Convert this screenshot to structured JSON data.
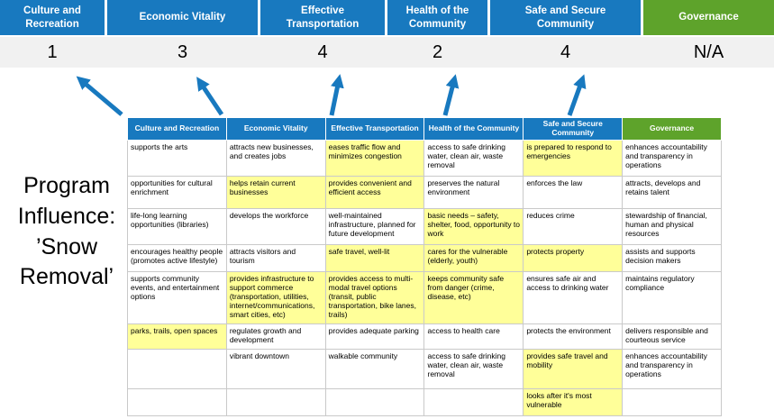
{
  "colors": {
    "blue": "#1879BF",
    "green": "#5EA32B",
    "highlight": "#FFFF99",
    "score_band": "#F1F1F1",
    "arrow": "#1879BF"
  },
  "pillars": [
    {
      "label": "Culture and Recreation",
      "score": "1",
      "color": "blue"
    },
    {
      "label": "Economic Vitality",
      "score": "3",
      "color": "blue"
    },
    {
      "label": "Effective Transportation",
      "score": "4",
      "color": "blue"
    },
    {
      "label": "Health of the Community",
      "score": "2",
      "color": "blue"
    },
    {
      "label": "Safe and Secure Community",
      "score": "4",
      "color": "blue"
    },
    {
      "label": "Governance",
      "score": "N/A",
      "color": "green"
    }
  ],
  "program_title": "Program Influence: ’Snow Removal’",
  "table": {
    "headers": [
      {
        "label": "Culture and Recreation",
        "color": "blue"
      },
      {
        "label": "Economic Vitality",
        "color": "blue"
      },
      {
        "label": "Effective Transportation",
        "color": "blue"
      },
      {
        "label": "Health of the Community",
        "color": "blue"
      },
      {
        "label": "Safe and Secure Community",
        "color": "blue"
      },
      {
        "label": "Governance",
        "color": "green"
      }
    ],
    "rows": [
      [
        {
          "text": "supports the arts",
          "highlight": false
        },
        {
          "text": "attracts new businesses, and creates jobs",
          "highlight": false
        },
        {
          "text": "eases traffic flow and minimizes congestion",
          "highlight": true
        },
        {
          "text": "access to safe drinking water, clean air, waste removal",
          "highlight": false
        },
        {
          "text": "is prepared to respond to emergencies",
          "highlight": true
        },
        {
          "text": "enhances accountability and transparency in operations",
          "highlight": false
        }
      ],
      [
        {
          "text": "opportunities for cultural enrichment",
          "highlight": false
        },
        {
          "text": "helps retain current businesses",
          "highlight": true
        },
        {
          "text": "provides convenient and efficient access",
          "highlight": true
        },
        {
          "text": "preserves the natural environment",
          "highlight": false
        },
        {
          "text": "enforces the law",
          "highlight": false
        },
        {
          "text": "attracts, develops and retains talent",
          "highlight": false
        }
      ],
      [
        {
          "text": "life-long learning opportunities (libraries)",
          "highlight": false
        },
        {
          "text": "develops the workforce",
          "highlight": false
        },
        {
          "text": "well-maintained infrastructure, planned for future development",
          "highlight": false
        },
        {
          "text": "basic needs – safety, shelter, food, opportunity to work",
          "highlight": true
        },
        {
          "text": "reduces crime",
          "highlight": false
        },
        {
          "text": "stewardship of financial, human and physical resources",
          "highlight": false
        }
      ],
      [
        {
          "text": "encourages healthy people (promotes active lifestyle)",
          "highlight": false
        },
        {
          "text": "attracts visitors and tourism",
          "highlight": false
        },
        {
          "text": "safe travel, well-lit",
          "highlight": true
        },
        {
          "text": "cares for the vulnerable (elderly, youth)",
          "highlight": true
        },
        {
          "text": "protects property",
          "highlight": true
        },
        {
          "text": "assists and supports decision makers",
          "highlight": false
        }
      ],
      [
        {
          "text": "supports community events, and entertainment options",
          "highlight": false
        },
        {
          "text": "provides infrastructure to support commerce (transportation, utilities, internet/communications, smart cities, etc)",
          "highlight": true
        },
        {
          "text": "provides access to multi-modal travel options (transit, public transportation, bike lanes, trails)",
          "highlight": true
        },
        {
          "text": "keeps community safe from danger (crime, disease, etc)",
          "highlight": true
        },
        {
          "text": "ensures safe air and access to drinking water",
          "highlight": false
        },
        {
          "text": "maintains regulatory compliance",
          "highlight": false
        }
      ],
      [
        {
          "text": "parks, trails, open spaces",
          "highlight": true
        },
        {
          "text": "regulates growth and development",
          "highlight": false
        },
        {
          "text": "provides adequate parking",
          "highlight": false
        },
        {
          "text": "access to health care",
          "highlight": false
        },
        {
          "text": "protects the environment",
          "highlight": false
        },
        {
          "text": "delivers responsible and courteous service",
          "highlight": false
        }
      ],
      [
        {
          "text": "",
          "highlight": false
        },
        {
          "text": "vibrant downtown",
          "highlight": false
        },
        {
          "text": "walkable community",
          "highlight": false
        },
        {
          "text": "access to safe drinking water, clean air, waste removal",
          "highlight": false
        },
        {
          "text": "provides safe travel and mobility",
          "highlight": true
        },
        {
          "text": "enhances accountability and transparency in operations",
          "highlight": false
        }
      ],
      [
        {
          "text": "",
          "highlight": false
        },
        {
          "text": "",
          "highlight": false
        },
        {
          "text": "",
          "highlight": false
        },
        {
          "text": "",
          "highlight": false
        },
        {
          "text": "looks after it's most vulnerable",
          "highlight": true
        },
        {
          "text": "",
          "highlight": false
        }
      ]
    ]
  }
}
